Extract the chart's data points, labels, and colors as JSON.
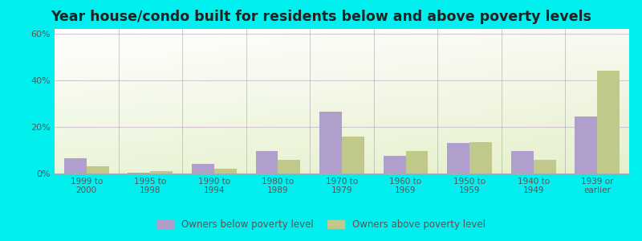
{
  "title": "Year house/condo built for residents below and above poverty levels",
  "categories": [
    "1999 to\n2000",
    "1995 to\n1998",
    "1990 to\n1994",
    "1980 to\n1989",
    "1970 to\n1979",
    "1960 to\n1969",
    "1950 to\n1959",
    "1940 to\n1949",
    "1939 or\nearlier"
  ],
  "below_poverty": [
    6.5,
    0.5,
    4.0,
    9.5,
    26.5,
    7.5,
    13.0,
    9.5,
    24.5
  ],
  "above_poverty": [
    3.0,
    1.0,
    2.0,
    6.0,
    16.0,
    9.5,
    13.5,
    6.0,
    44.0
  ],
  "below_color": "#b09fcc",
  "above_color": "#c0c88a",
  "ylim": [
    0,
    62
  ],
  "yticks": [
    0,
    20,
    40,
    60
  ],
  "ytick_labels": [
    "0%",
    "20%",
    "40%",
    "60%"
  ],
  "outer_background": "#00efef",
  "legend_below": "Owners below poverty level",
  "legend_above": "Owners above poverty level",
  "bar_width": 0.35,
  "title_fontsize": 12.5
}
